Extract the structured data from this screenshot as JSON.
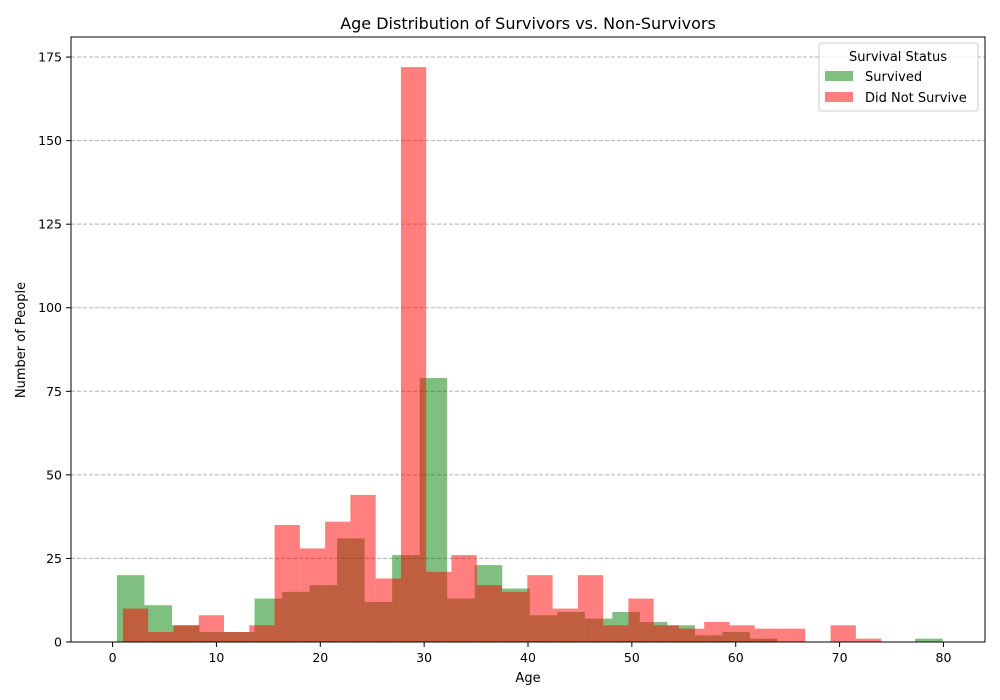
{
  "chart_data": {
    "type": "histogram",
    "title": "Age Distribution of Survivors vs. Non-Survivors",
    "xlabel": "Age",
    "ylabel": "Number of People",
    "xlim": [
      -4,
      84
    ],
    "ylim": [
      0,
      181
    ],
    "xticks": [
      0,
      10,
      20,
      30,
      40,
      50,
      60,
      70,
      80
    ],
    "yticks": [
      0,
      25,
      50,
      75,
      100,
      125,
      150,
      175
    ],
    "grid": {
      "y": true,
      "x": false,
      "style": "dashed"
    },
    "legend": {
      "title": "Survival Status",
      "position": "top-right",
      "entries": [
        "Survived",
        "Did Not Survive"
      ]
    },
    "series": [
      {
        "name": "Survived",
        "color": "#008000",
        "opacity": 0.5,
        "bin_start": 0.42,
        "bin_width": 2.65,
        "counts": [
          20,
          11,
          5,
          3,
          3,
          13,
          15,
          17,
          31,
          12,
          26,
          79,
          13,
          23,
          16,
          8,
          9,
          7,
          9,
          6,
          5,
          2,
          3,
          1,
          0,
          0,
          0,
          0,
          0,
          1
        ]
      },
      {
        "name": "Did Not Survive",
        "color": "#ff0000",
        "opacity": 0.5,
        "bin_start": 1.0,
        "bin_width": 2.4333,
        "counts": [
          10,
          3,
          5,
          8,
          3,
          5,
          35,
          28,
          36,
          44,
          19,
          172,
          21,
          26,
          17,
          15,
          20,
          10,
          20,
          5,
          13,
          5,
          4,
          6,
          5,
          4,
          4,
          0,
          5,
          1
        ]
      }
    ]
  }
}
